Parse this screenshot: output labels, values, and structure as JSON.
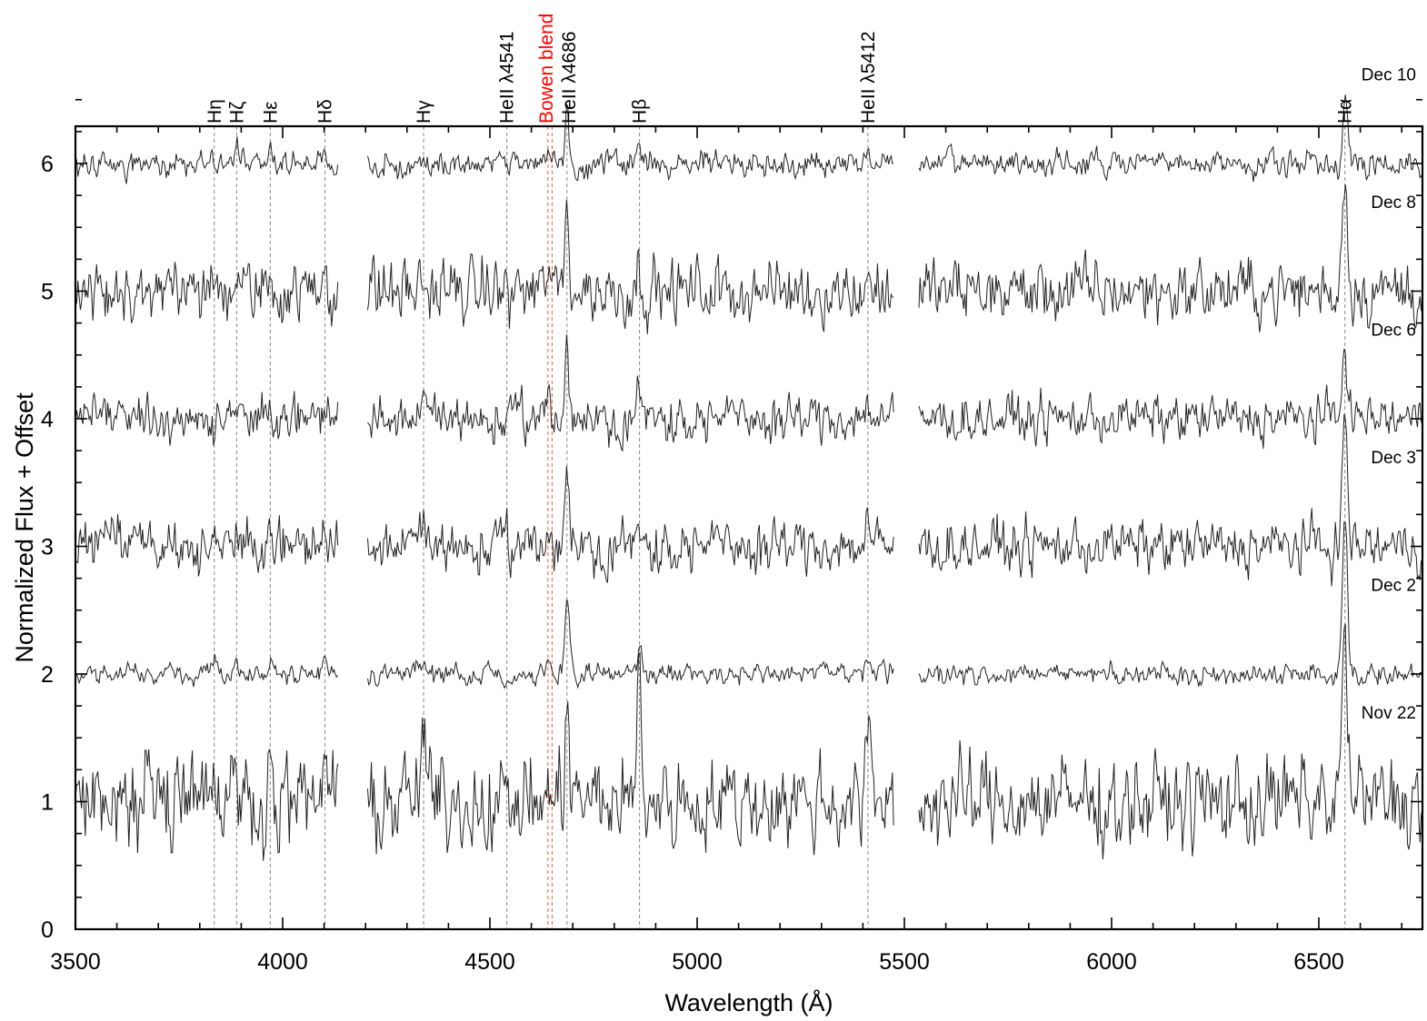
{
  "chart_data": {
    "type": "line",
    "title": "",
    "xlabel": "Wavelength (Å)",
    "ylabel": "Normalized Flux + Offset",
    "xlim": [
      3500,
      6750
    ],
    "ylim": [
      0,
      6.5
    ],
    "x_ticks": [
      3500,
      4000,
      4500,
      5000,
      5500,
      6000,
      6500
    ],
    "y_ticks": [
      0,
      1,
      2,
      3,
      4,
      5,
      6
    ],
    "x_minor_step": 100,
    "y_minor_step": 0.25,
    "grid": false,
    "gaps": [
      [
        4135,
        4205
      ],
      [
        5475,
        5535
      ]
    ],
    "line_markers": [
      {
        "label": "Hη",
        "wavelength": 3835,
        "color": "#000000"
      },
      {
        "label": "Hζ",
        "wavelength": 3889,
        "color": "#000000"
      },
      {
        "label": "Hε",
        "wavelength": 3970,
        "color": "#000000"
      },
      {
        "label": "Hδ",
        "wavelength": 4102,
        "color": "#000000"
      },
      {
        "label": "Hγ",
        "wavelength": 4340,
        "color": "#000000"
      },
      {
        "label": "HeII λ4541",
        "wavelength": 4541,
        "color": "#000000"
      },
      {
        "label": "Bowen blend",
        "wavelength": 4640,
        "wavelength_2": 4650,
        "color": "#ff0000"
      },
      {
        "label": "HeII λ4686",
        "wavelength": 4686,
        "color": "#000000"
      },
      {
        "label": "Hβ",
        "wavelength": 4861,
        "color": "#000000"
      },
      {
        "label": "HeII λ5412",
        "wavelength": 5412,
        "color": "#000000"
      },
      {
        "label": "Hα",
        "wavelength": 6563,
        "color": "#000000"
      }
    ],
    "series": [
      {
        "name": "Dec 10",
        "offset": 6,
        "noise": 0.045,
        "seed": 11,
        "lines": {
          "3889": 0.12,
          "3970": 0.12,
          "4102": 0.08,
          "4340": 0.1,
          "4640": 0.08,
          "4686": 0.45,
          "4861": 0.1,
          "5412": 0.08,
          "6563": 0.5
        }
      },
      {
        "name": "Dec 8",
        "offset": 5,
        "noise": 0.11,
        "seed": 23,
        "lines": {
          "3889": 0.12,
          "3970": 0.12,
          "4102": 0.25,
          "4340": 0.1,
          "4640": 0.2,
          "4686": 0.7,
          "4861": 0.2,
          "5412": 0.15,
          "6563": 0.95
        }
      },
      {
        "name": "Dec 6",
        "offset": 4,
        "noise": 0.08,
        "seed": 37,
        "lines": {
          "3889": 0.1,
          "3970": 0.1,
          "4102": 0.1,
          "4340": 0.12,
          "4640": 0.15,
          "4686": 0.6,
          "4861": 0.2,
          "5412": 0.15,
          "6563": 0.65
        }
      },
      {
        "name": "Dec 3",
        "offset": 3,
        "noise": 0.09,
        "seed": 51,
        "lines": {
          "3889": 0.12,
          "3970": 0.1,
          "4102": 0.1,
          "4340": 0.18,
          "4640": 0.15,
          "4686": 0.65,
          "4861": 0.12,
          "5412": 0.2,
          "6563": 1.0
        }
      },
      {
        "name": "Dec 2",
        "offset": 2,
        "noise": 0.035,
        "seed": 67,
        "lines": {
          "3835": 0.1,
          "3889": 0.1,
          "3970": 0.08,
          "4102": 0.18,
          "4340": 0.07,
          "4640": 0.12,
          "4686": 0.65,
          "4861": 0.25,
          "5412": 0.08,
          "6563": 1.25
        }
      },
      {
        "name": "Nov 22",
        "offset": 1,
        "noise": 0.16,
        "seed": 83,
        "lines": {
          "3835": 0.35,
          "3889": 0.35,
          "3970": 0.25,
          "4102": 0.4,
          "4340": 0.65,
          "4686": 0.9,
          "4861": 1.1,
          "5412": 0.5,
          "6563": 1.4
        }
      }
    ]
  }
}
